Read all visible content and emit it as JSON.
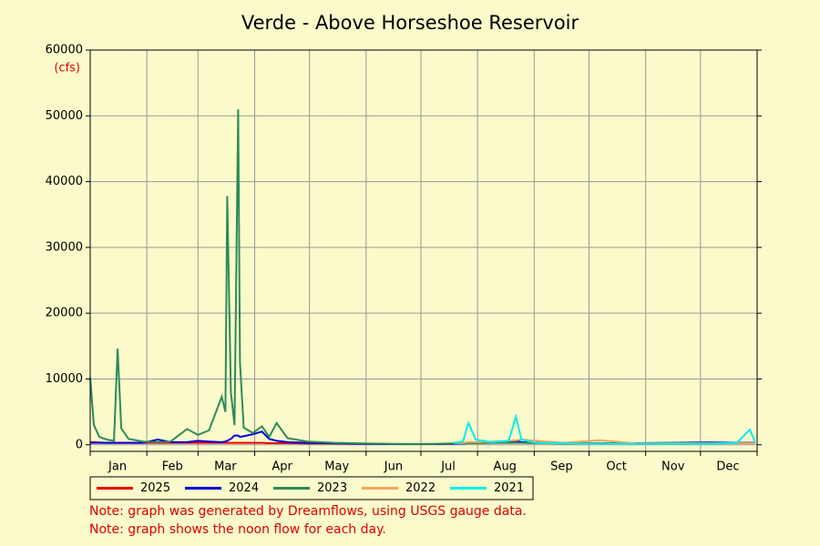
{
  "chart_data": {
    "type": "line",
    "title": "Verde - Above Horseshoe Reservoir",
    "y_unit_label": "(cfs)",
    "notes": [
      "Note: graph was generated by Dreamflows, using USGS gauge data.",
      "Note: graph shows the noon flow for each day."
    ],
    "x": [
      1,
      3,
      6,
      10,
      14,
      16,
      18,
      22,
      30,
      38,
      45,
      54,
      60,
      66,
      73,
      75,
      76,
      78,
      80,
      82,
      83,
      85,
      90,
      95,
      99,
      103,
      109,
      120,
      135,
      150,
      165,
      180,
      190,
      200,
      205,
      208,
      212,
      220,
      230,
      234,
      237,
      245,
      260,
      280,
      300,
      320,
      340,
      355,
      362,
      365
    ],
    "xlim": [
      1,
      366
    ],
    "xticks": [
      {
        "value": 16,
        "label": "Jan"
      },
      {
        "value": 46,
        "label": "Feb"
      },
      {
        "value": 75,
        "label": "Mar"
      },
      {
        "value": 106,
        "label": "Apr"
      },
      {
        "value": 136,
        "label": "May"
      },
      {
        "value": 167,
        "label": "Jun"
      },
      {
        "value": 197,
        "label": "Jul"
      },
      {
        "value": 228,
        "label": "Aug"
      },
      {
        "value": 259,
        "label": "Sep"
      },
      {
        "value": 289,
        "label": "Oct"
      },
      {
        "value": 320,
        "label": "Nov"
      },
      {
        "value": 350,
        "label": "Dec"
      }
    ],
    "xgrid": [
      1,
      32,
      60,
      91,
      121,
      152,
      182,
      213,
      244,
      274,
      305,
      335,
      366
    ],
    "ylim": [
      -1000,
      60000
    ],
    "yticks": [
      0,
      10000,
      20000,
      30000,
      40000,
      50000,
      60000
    ],
    "grid": true,
    "legend": "bottom",
    "series": [
      {
        "name": "2025",
        "color": "#ee0000",
        "values": [
          400,
          400,
          350,
          300,
          300,
          300,
          300,
          300,
          300,
          300,
          300,
          300,
          300,
          300,
          300,
          300,
          300,
          300,
          300,
          300,
          300,
          300,
          300,
          300,
          250,
          250,
          250,
          200,
          200,
          150,
          100,
          100,
          100,
          null,
          null,
          null,
          null,
          null,
          null,
          null,
          null,
          null,
          null,
          null,
          null,
          null,
          null,
          null,
          null,
          null
        ]
      },
      {
        "name": "2024",
        "color": "#0000dd",
        "values": [
          300,
          300,
          300,
          300,
          300,
          300,
          300,
          300,
          300,
          800,
          400,
          400,
          600,
          500,
          400,
          500,
          600,
          900,
          1400,
          1400,
          1200,
          1300,
          1600,
          2000,
          900,
          600,
          400,
          300,
          200,
          150,
          100,
          100,
          100,
          150,
          200,
          250,
          300,
          300,
          400,
          600,
          400,
          300,
          200,
          200,
          250,
          300,
          350,
          300,
          300,
          300
        ]
      },
      {
        "name": "2023",
        "color": "#2e8b57",
        "values": [
          10200,
          3000,
          1200,
          800,
          600,
          14600,
          2500,
          900,
          500,
          400,
          500,
          2400,
          1500,
          2200,
          7300,
          5000,
          37800,
          8000,
          3000,
          51000,
          12500,
          2600,
          1800,
          2800,
          1200,
          3300,
          1000,
          500,
          300,
          200,
          150,
          120,
          150,
          200,
          200,
          250,
          250,
          300,
          300,
          300,
          300,
          250,
          200,
          200,
          200,
          250,
          250,
          250,
          250,
          250
        ]
      },
      {
        "name": "2022",
        "color": "#f4a460",
        "values": [
          null,
          null,
          null,
          null,
          null,
          null,
          null,
          null,
          null,
          null,
          null,
          null,
          null,
          null,
          null,
          null,
          null,
          null,
          null,
          null,
          null,
          null,
          null,
          null,
          null,
          null,
          null,
          null,
          null,
          null,
          null,
          null,
          null,
          300,
          300,
          400,
          400,
          500,
          600,
          700,
          800,
          600,
          300,
          700,
          200,
          200,
          200,
          200,
          200,
          200
        ]
      },
      {
        "name": "2021",
        "color": "#00eeee",
        "values": [
          null,
          null,
          null,
          null,
          null,
          null,
          null,
          null,
          null,
          null,
          null,
          null,
          null,
          null,
          null,
          null,
          null,
          null,
          null,
          null,
          null,
          null,
          null,
          null,
          null,
          null,
          null,
          null,
          null,
          null,
          null,
          null,
          null,
          300,
          500,
          3300,
          800,
          400,
          600,
          4300,
          800,
          300,
          200,
          150,
          150,
          150,
          150,
          300,
          2300,
          300
        ]
      }
    ]
  }
}
